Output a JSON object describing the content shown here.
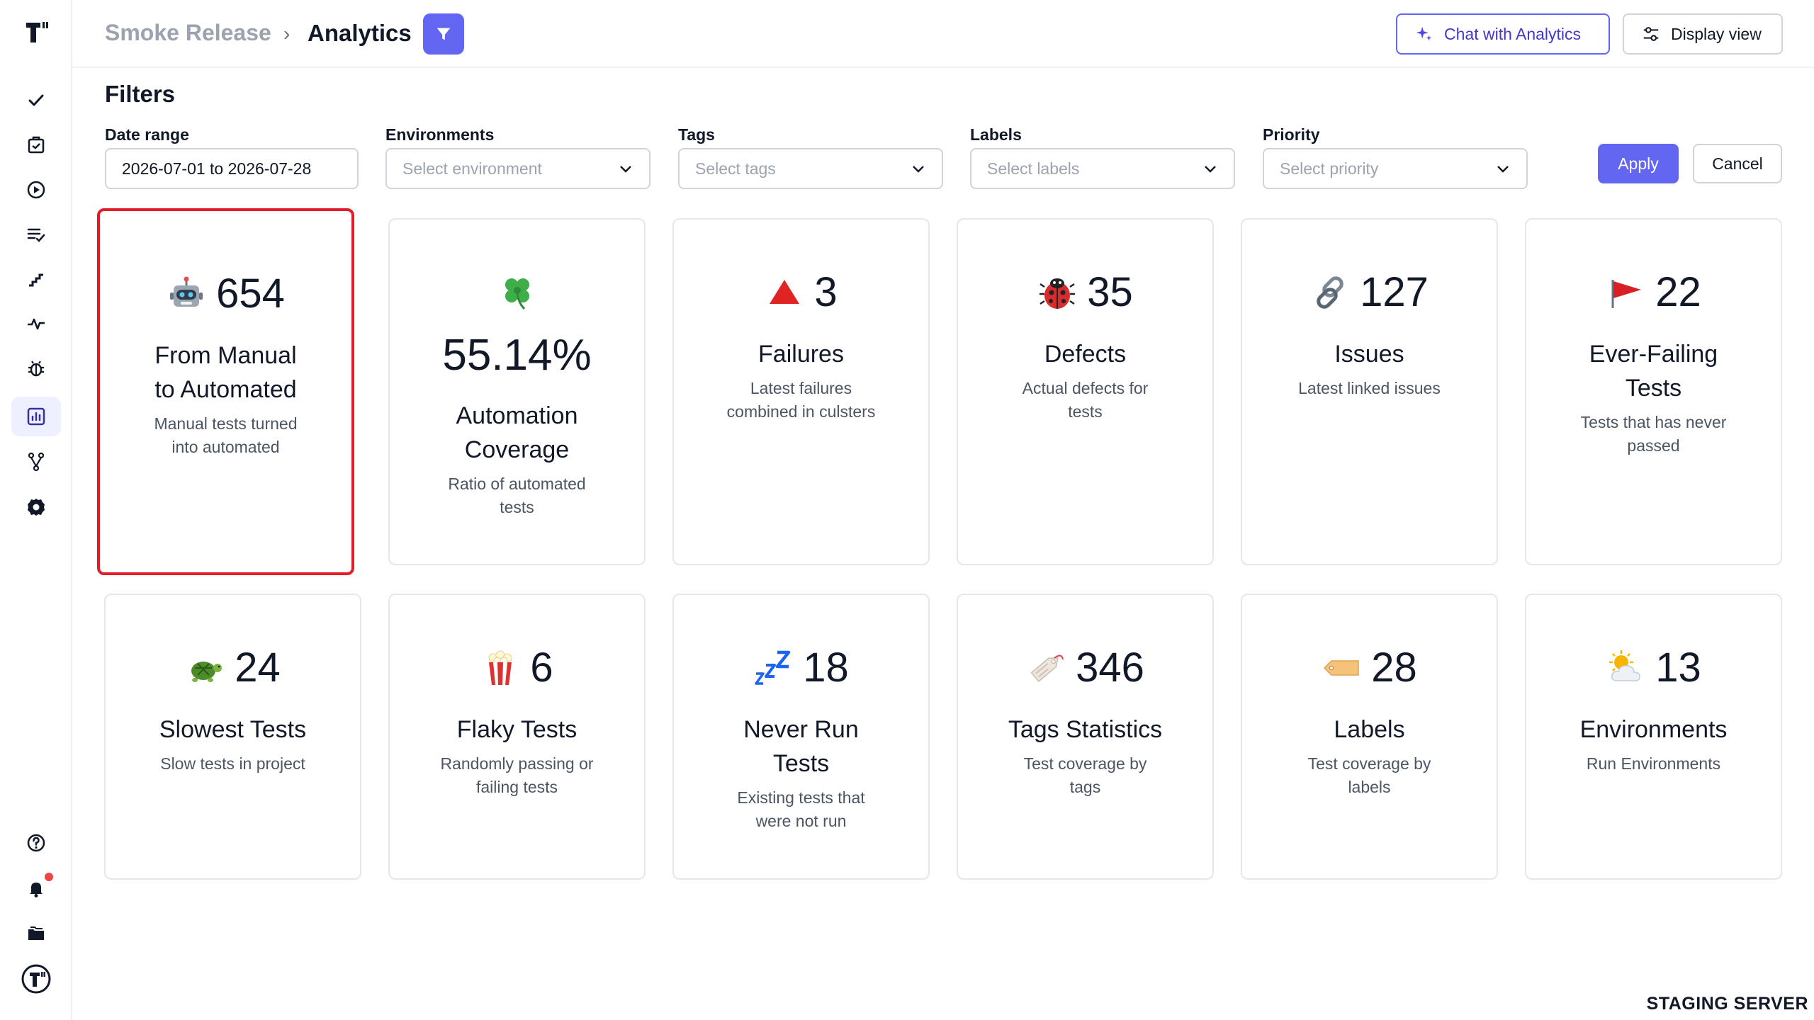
{
  "app": {
    "environment_banner": "STAGING SERVER"
  },
  "rail": {
    "items": [
      {
        "name": "tests-icon"
      },
      {
        "name": "suites-icon"
      },
      {
        "name": "runs-icon"
      },
      {
        "name": "plans-icon"
      },
      {
        "name": "steps-icon"
      },
      {
        "name": "pulse-icon"
      },
      {
        "name": "bug-icon"
      },
      {
        "name": "analytics-icon",
        "active": true
      },
      {
        "name": "branches-icon"
      },
      {
        "name": "settings-icon"
      },
      {
        "name": "help-icon"
      },
      {
        "name": "notifications-icon",
        "has_badge": true
      },
      {
        "name": "projects-icon"
      },
      {
        "name": "profile-icon"
      }
    ]
  },
  "header": {
    "breadcrumb_parent": "Smoke Release",
    "breadcrumb_separator": "›",
    "title": "Analytics",
    "chat_label": "Chat with Analytics",
    "display_label": "Display view",
    "accent": "#6366f1"
  },
  "filters": {
    "title": "Filters",
    "date_range": {
      "label": "Date range",
      "value": "2026-07-01 to 2026-07-28"
    },
    "environments": {
      "label": "Environments",
      "placeholder": "Select environment"
    },
    "tags": {
      "label": "Tags",
      "placeholder": "Select tags"
    },
    "labels": {
      "label": "Labels",
      "placeholder": "Select labels"
    },
    "priority": {
      "label": "Priority",
      "placeholder": "Select priority"
    },
    "apply_label": "Apply",
    "cancel_label": "Cancel"
  },
  "cards": [
    {
      "emoji": "robot",
      "value": "654",
      "title_lines": [
        "From Manual",
        "to Automated"
      ],
      "desc_lines": [
        "Manual tests turned",
        "into automated"
      ],
      "selected": true
    },
    {
      "emoji": "clover",
      "value": "55.14%",
      "title_lines": [
        "Automation",
        "Coverage"
      ],
      "desc_lines": [
        "Ratio of automated",
        "tests"
      ]
    },
    {
      "emoji": "triangle",
      "value": "3",
      "title_lines": [
        "Failures"
      ],
      "desc_lines": [
        "Latest failures",
        "combined in culsters"
      ]
    },
    {
      "emoji": "ladybug",
      "value": "35",
      "title_lines": [
        "Defects"
      ],
      "desc_lines": [
        "Actual defects for",
        "tests"
      ]
    },
    {
      "emoji": "link",
      "value": "127",
      "title_lines": [
        "Issues"
      ],
      "desc_lines": [
        "Latest linked issues"
      ]
    },
    {
      "emoji": "flag",
      "value": "22",
      "title_lines": [
        "Ever-Failing",
        "Tests"
      ],
      "desc_lines": [
        "Tests that has never",
        "passed"
      ]
    },
    {
      "emoji": "turtle",
      "value": "24",
      "title_lines": [
        "Slowest Tests"
      ],
      "desc_lines": [
        "Slow tests in project"
      ]
    },
    {
      "emoji": "popcorn",
      "value": "6",
      "title_lines": [
        "Flaky Tests"
      ],
      "desc_lines": [
        "Randomly passing or",
        "failing tests"
      ]
    },
    {
      "emoji": "zzz",
      "value": "18",
      "title_lines": [
        "Never Run",
        "Tests"
      ],
      "desc_lines": [
        "Existing tests that",
        "were not run"
      ]
    },
    {
      "emoji": "tag",
      "value": "346",
      "title_lines": [
        "Tags Statistics"
      ],
      "desc_lines": [
        "Test coverage by",
        "tags"
      ]
    },
    {
      "emoji": "label",
      "value": "28",
      "title_lines": [
        "Labels"
      ],
      "desc_lines": [
        "Test coverage by",
        "labels"
      ]
    },
    {
      "emoji": "sun-cloud",
      "value": "13",
      "title_lines": [
        "Environments"
      ],
      "desc_lines": [
        "Run Environments"
      ]
    }
  ]
}
